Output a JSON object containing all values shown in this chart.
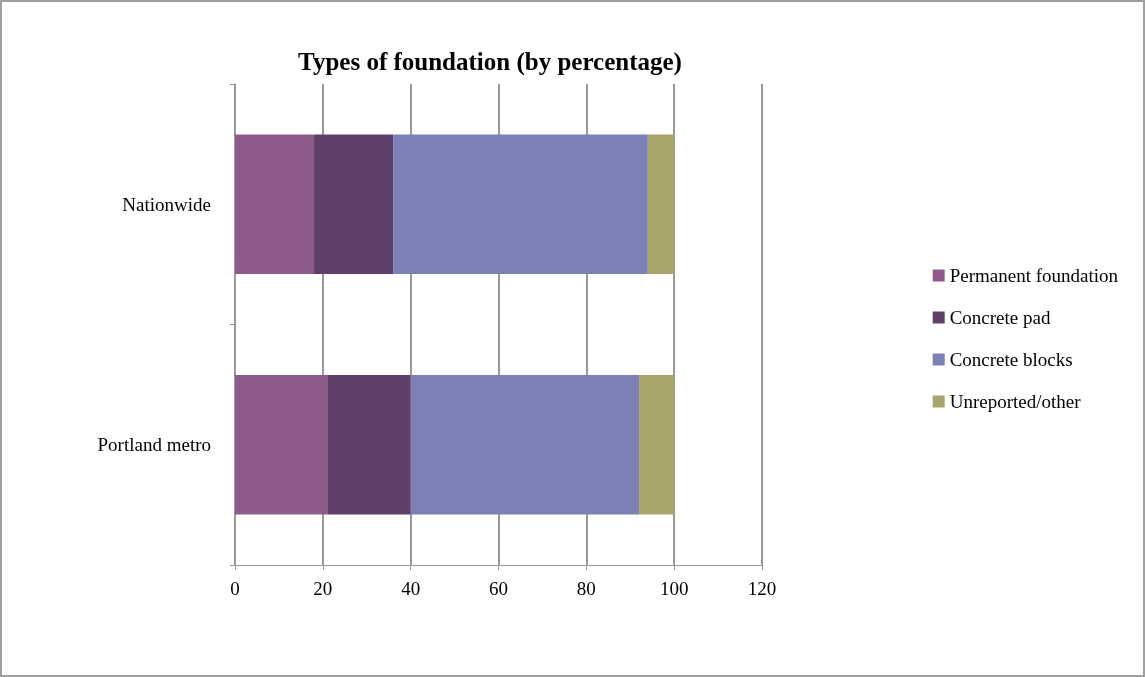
{
  "chart_data": {
    "type": "bar",
    "orientation": "horizontal",
    "stacked": true,
    "title": "Types of foundation (by percentage)",
    "categories": [
      "Nationwide",
      "Portland metro"
    ],
    "series": [
      {
        "name": "Permanent foundation",
        "color": "#8e5a8a",
        "values": [
          18,
          21
        ]
      },
      {
        "name": "Concrete pad",
        "color": "#5e4068",
        "values": [
          18,
          19
        ]
      },
      {
        "name": "Concrete blocks",
        "color": "#7c80b4",
        "values": [
          58,
          52
        ]
      },
      {
        "name": "Unreported/other",
        "color": "#a8a66c",
        "values": [
          6,
          8
        ]
      }
    ],
    "xlim": [
      0,
      120
    ],
    "xticks": [
      0,
      20,
      40,
      60,
      80,
      100,
      120
    ],
    "grid": "x",
    "legend": "right"
  }
}
